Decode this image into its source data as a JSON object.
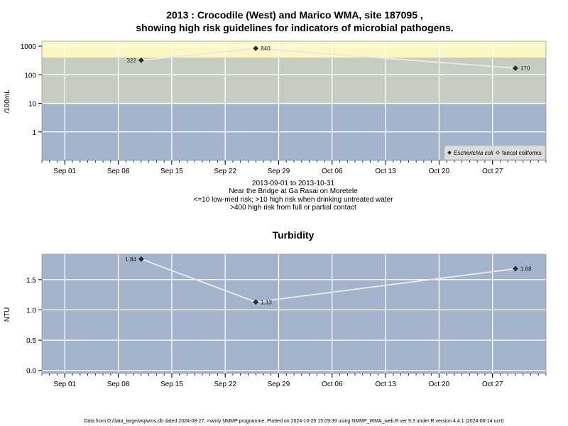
{
  "chart_data": [
    {
      "type": "line",
      "title_line1": "2013 : Crocodile (West) and Marico WMA, site 187095 ,",
      "title_line2": "showing high risk guidelines for indicators of microbial pathogens.",
      "ylabel": "/100mL",
      "y_scale": "log",
      "ylim": [
        0.1,
        1500
      ],
      "y_ticks": [
        "1",
        "10",
        "100",
        "1000"
      ],
      "y_tick_values": [
        1,
        10,
        100,
        1000
      ],
      "x_ticks": [
        "Sep 01",
        "Sep 08",
        "Sep 15",
        "Sep 22",
        "Sep 29",
        "Oct 06",
        "Oct 13",
        "Oct 20",
        "Oct 27"
      ],
      "x_tick_dates": [
        "2013-09-01",
        "2013-09-08",
        "2013-09-15",
        "2013-09-22",
        "2013-09-29",
        "2013-10-06",
        "2013-10-13",
        "2013-10-20",
        "2013-10-27"
      ],
      "xlim": [
        "2013-08-29",
        "2013-11-03"
      ],
      "bands": [
        {
          "from": 400,
          "to": 1500,
          "color": "#fdf6c3"
        },
        {
          "from": 10,
          "to": 400,
          "color": "#c4cdbf"
        },
        {
          "from": 0.1,
          "to": 10,
          "color": "#a2b3cb"
        }
      ],
      "grid": true,
      "legend_position": "bottom-right",
      "legend": [
        {
          "label": "Escherichia coli",
          "marker": "filled-diamond"
        },
        {
          "label": "faecal coliforms",
          "marker": "open-diamond"
        }
      ],
      "series": [
        {
          "name": "Escherichia coli",
          "x": [
            "2013-09-11",
            "2013-09-26",
            "2013-10-30"
          ],
          "y": [
            322,
            840,
            170
          ],
          "labels": [
            "322",
            "840",
            "170"
          ],
          "label_side": [
            "left",
            "right",
            "right"
          ]
        }
      ],
      "subtitle_lines": [
        "2013-09-01 to 2013-10-31",
        "Near the Bridge at Ga Rasai on Moretele",
        "<=10 low-med risk; >10 high risk when drinking untreated water",
        ">400 high risk from full or partial contact"
      ]
    },
    {
      "type": "line",
      "title": "Turbidity",
      "ylabel": "NTU",
      "ylim": [
        -0.05,
        1.92
      ],
      "y_ticks": [
        "0.0",
        "0.5",
        "1.0",
        "1.5"
      ],
      "y_tick_values": [
        0,
        0.5,
        1.0,
        1.5
      ],
      "x_ticks": [
        "Sep 01",
        "Sep 08",
        "Sep 15",
        "Sep 22",
        "Sep 29",
        "Oct 06",
        "Oct 13",
        "Oct 20",
        "Oct 27"
      ],
      "x_tick_dates": [
        "2013-09-01",
        "2013-09-08",
        "2013-09-15",
        "2013-09-22",
        "2013-09-29",
        "2013-10-06",
        "2013-10-13",
        "2013-10-20",
        "2013-10-27"
      ],
      "xlim": [
        "2013-08-29",
        "2013-11-03"
      ],
      "background": "#a2b3cb",
      "grid": true,
      "series": [
        {
          "name": "Turbidity",
          "x": [
            "2013-09-11",
            "2013-09-26",
            "2013-10-30"
          ],
          "y": [
            1.84,
            1.13,
            1.68
          ],
          "labels": [
            "1.84",
            "1.13",
            "1.68"
          ],
          "label_side": [
            "left",
            "right",
            "right"
          ]
        }
      ]
    }
  ],
  "footer": "Data from D:/data_large/wq/wms.db dated 2024-08-27, mainly NMMP programme. Plotted on 2024-10-25 15:09:39 using NMMP_WMA_web.R ver 9.3 under R version 4.4.1 (2024-06-14 ucrt)"
}
